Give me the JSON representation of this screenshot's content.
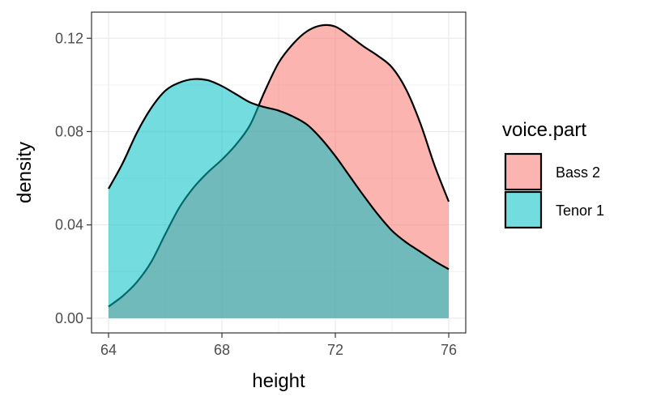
{
  "chart_data": {
    "type": "area",
    "title": "",
    "xlabel": "height",
    "ylabel": "density",
    "xlim": [
      63.4,
      76.6
    ],
    "ylim": [
      -0.0063,
      0.1312
    ],
    "x_ticks": [
      64,
      68,
      72,
      76
    ],
    "x_tick_labels": [
      "64",
      "68",
      "72",
      "76"
    ],
    "y_ticks": [
      0.0,
      0.04,
      0.08,
      0.12
    ],
    "y_tick_labels": [
      "0.00",
      "0.04",
      "0.08",
      "0.12"
    ],
    "grid": true,
    "legend_position": "right",
    "legend": {
      "title": "voice.part",
      "entries": [
        "Bass 2",
        "Tenor 1"
      ]
    },
    "series": [
      {
        "name": "Bass 2",
        "fill": "#F8766D",
        "x": [
          64,
          64.5,
          65,
          65.5,
          66,
          66.5,
          67,
          67.5,
          68,
          68.5,
          69,
          69.5,
          70,
          70.5,
          71,
          71.5,
          72,
          72.5,
          73,
          73.5,
          74,
          74.5,
          75,
          75.5,
          76
        ],
        "y": [
          0.005,
          0.0095,
          0.0155,
          0.024,
          0.036,
          0.0475,
          0.056,
          0.0625,
          0.068,
          0.0745,
          0.083,
          0.097,
          0.1095,
          0.1175,
          0.123,
          0.1255,
          0.125,
          0.121,
          0.1165,
          0.1125,
          0.1075,
          0.098,
          0.0835,
          0.0655,
          0.05
        ]
      },
      {
        "name": "Tenor 1",
        "fill": "#00BFC4",
        "x": [
          64,
          64.5,
          65,
          65.5,
          66,
          66.5,
          67,
          67.5,
          68,
          68.5,
          69,
          69.5,
          70,
          70.5,
          71,
          71.5,
          72,
          72.5,
          73,
          73.5,
          74,
          74.5,
          75,
          75.5,
          76
        ],
        "y": [
          0.0555,
          0.0665,
          0.0795,
          0.09,
          0.0975,
          0.101,
          0.1025,
          0.102,
          0.0995,
          0.096,
          0.0925,
          0.0905,
          0.089,
          0.0865,
          0.083,
          0.077,
          0.0695,
          0.061,
          0.0525,
          0.0445,
          0.0375,
          0.0325,
          0.0285,
          0.0245,
          0.021
        ]
      }
    ]
  }
}
